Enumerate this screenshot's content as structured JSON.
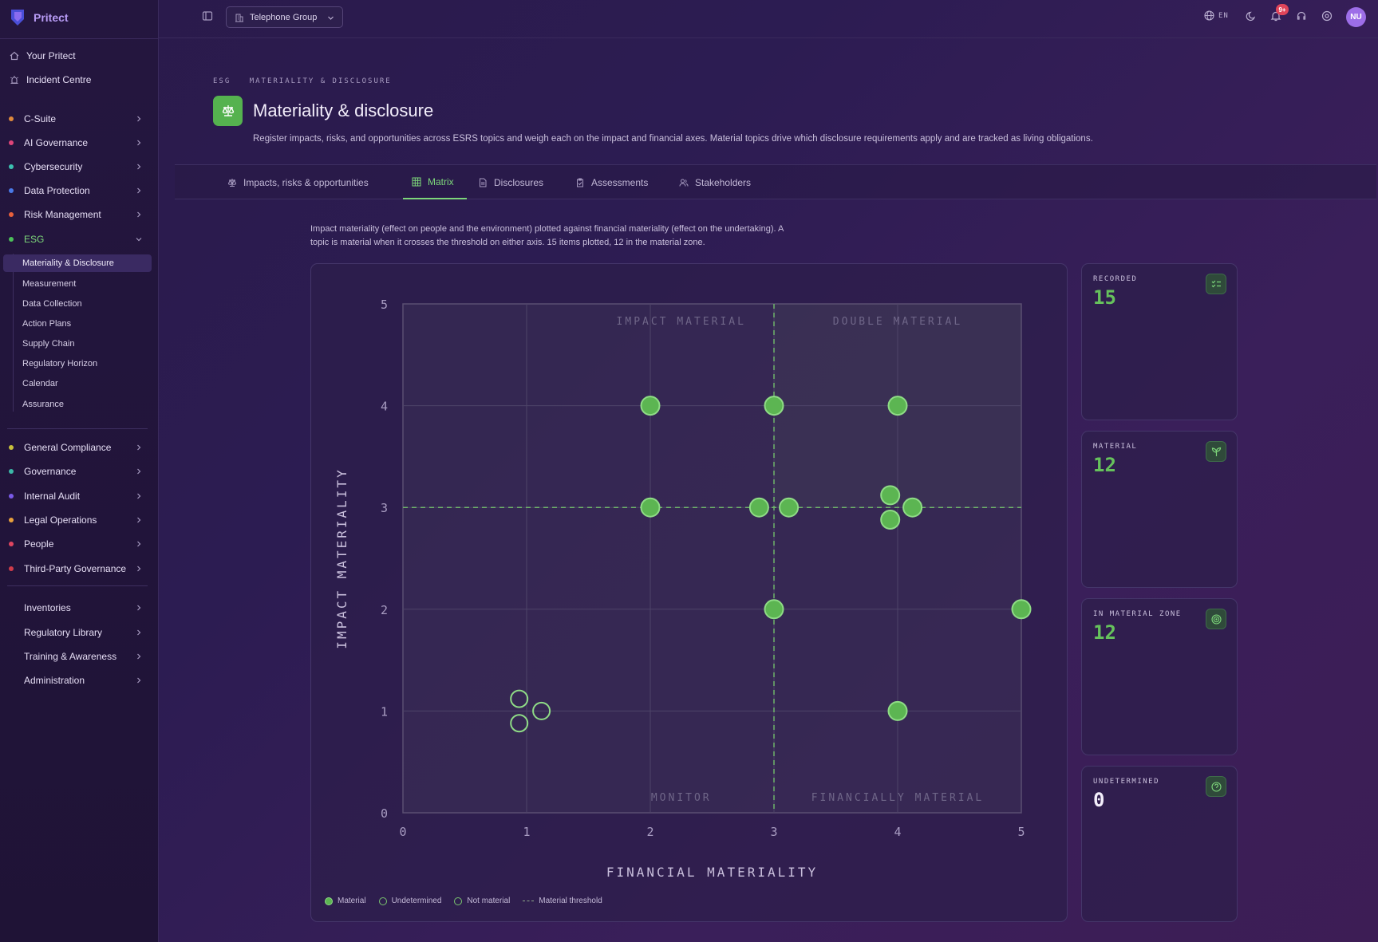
{
  "brand": {
    "name": "Pritect"
  },
  "sidebar": {
    "top_items": [
      {
        "label": "Your Pritect",
        "icon": "home-icon"
      },
      {
        "label": "Incident Centre",
        "icon": "siren-icon"
      }
    ],
    "groups": [
      {
        "label": "C-Suite",
        "color": "#e08a3c"
      },
      {
        "label": "AI Governance",
        "color": "#e0457a"
      },
      {
        "label": "Cybersecurity",
        "color": "#3cc0b0"
      },
      {
        "label": "Data Protection",
        "color": "#4a7ae8"
      },
      {
        "label": "Risk Management",
        "color": "#e8603c"
      },
      {
        "label": "ESG",
        "color": "#4cc05a"
      }
    ],
    "esg_items": [
      "Materiality & Disclosure",
      "Measurement",
      "Data Collection",
      "Action Plans",
      "Supply Chain",
      "Regulatory Horizon",
      "Calendar",
      "Assurance"
    ],
    "groups2": [
      {
        "label": "General Compliance",
        "color": "#c8c03c"
      },
      {
        "label": "Governance",
        "color": "#3cb8a8"
      },
      {
        "label": "Internal Audit",
        "color": "#7a5ae8"
      },
      {
        "label": "Legal Operations",
        "color": "#e8a03c"
      },
      {
        "label": "People",
        "color": "#e04560"
      },
      {
        "label": "Third-Party Governance",
        "color": "#d03c4a"
      }
    ],
    "bottom_items": [
      "Inventories",
      "Regulatory Library",
      "Training & Awareness",
      "Administration"
    ]
  },
  "topbar": {
    "org": "Telephone Group",
    "lang": "EN",
    "notif_count": "9+",
    "avatar": "NU"
  },
  "page": {
    "breadcrumb": [
      "ESG",
      "MATERIALITY & DISCLOSURE"
    ],
    "title": "Materiality & disclosure",
    "description": "Register impacts, risks, and opportunities across ESRS topics and weigh each on the impact and financial axes. Material topics drive which disclosure requirements apply and are tracked as living obligations.",
    "tabs": [
      {
        "label": "Impacts, risks & opportunities",
        "icon": "scale-icon"
      },
      {
        "label": "Matrix",
        "icon": "grid-icon"
      },
      {
        "label": "Disclosures",
        "icon": "document-icon"
      },
      {
        "label": "Assessments",
        "icon": "clipboard-icon"
      },
      {
        "label": "Stakeholders",
        "icon": "users-icon"
      }
    ],
    "intro_line1": "Impact materiality (effect on people and the environment) plotted against financial materiality (effect on the undertaking). A",
    "intro_line2": "topic is material when it crosses the threshold on either axis. 15 items plotted, 12 in the material zone."
  },
  "chart_data": {
    "type": "scatter",
    "xlabel": "FINANCIAL MATERIALITY",
    "ylabel": "IMPACT MATERIALITY",
    "xlim": [
      0,
      5
    ],
    "ylim": [
      0,
      5
    ],
    "ticks": [
      0,
      1,
      2,
      3,
      4,
      5
    ],
    "threshold": {
      "x": 3,
      "y": 3
    },
    "quadrants": [
      "IMPACT MATERIAL",
      "DOUBLE MATERIAL",
      "MONITOR",
      "FINANCIALLY MATERIAL"
    ],
    "grid": true,
    "points": [
      {
        "x": 2,
        "y": 4,
        "status": "material"
      },
      {
        "x": 3,
        "y": 4,
        "status": "material"
      },
      {
        "x": 4,
        "y": 4,
        "status": "material"
      },
      {
        "x": 2,
        "y": 3,
        "status": "material"
      },
      {
        "x": 2.88,
        "y": 3,
        "status": "material"
      },
      {
        "x": 3.12,
        "y": 3,
        "status": "material"
      },
      {
        "x": 3.94,
        "y": 3.12,
        "status": "material"
      },
      {
        "x": 3.94,
        "y": 2.88,
        "status": "material"
      },
      {
        "x": 4.12,
        "y": 3,
        "status": "material"
      },
      {
        "x": 3,
        "y": 2,
        "status": "material"
      },
      {
        "x": 5,
        "y": 2,
        "status": "material"
      },
      {
        "x": 4,
        "y": 1,
        "status": "material"
      },
      {
        "x": 0.94,
        "y": 1.12,
        "status": "not_material"
      },
      {
        "x": 1.12,
        "y": 1,
        "status": "not_material"
      },
      {
        "x": 0.94,
        "y": 0.88,
        "status": "not_material"
      }
    ],
    "legend": [
      "Material",
      "Undetermined",
      "Not material",
      "Material threshold"
    ],
    "colors": {
      "material": "#5cb552",
      "ring": "#8fdc86",
      "threshold": "#6fb56a"
    }
  },
  "stats": [
    {
      "label": "RECORDED",
      "value": "15",
      "icon": "checklist-icon"
    },
    {
      "label": "MATERIAL",
      "value": "12",
      "icon": "sprout-icon"
    },
    {
      "label": "IN MATERIAL ZONE",
      "value": "12",
      "icon": "target-icon"
    },
    {
      "label": "UNDETERMINED",
      "value": "0",
      "icon": "help-circle-icon"
    }
  ]
}
